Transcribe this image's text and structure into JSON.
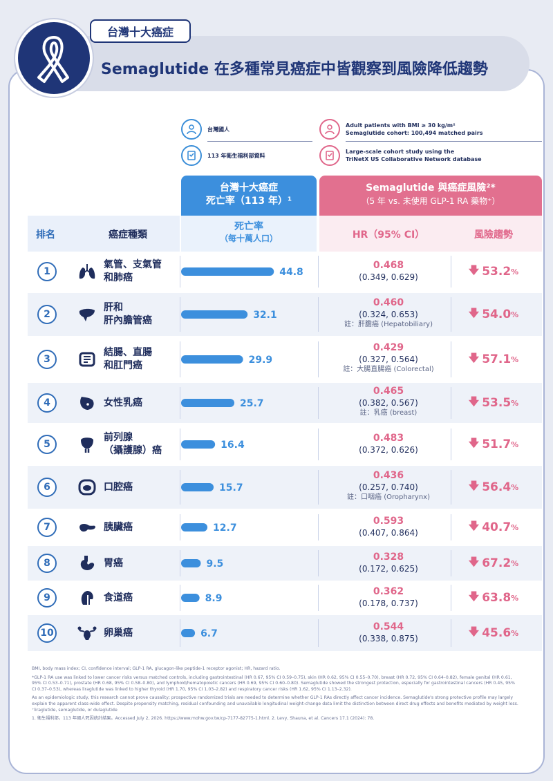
{
  "header": {
    "tag": "台灣十大癌症",
    "title": "Semaglutide 在多種常見癌症中皆觀察到風險降低趨勢"
  },
  "info": {
    "left1": "台灣國人",
    "left2": "113 年衛生福利部資料",
    "right1a": "Adult patients with BMI ≥ 30 kg/m²",
    "right1b": "Semaglutide cohort: 100,494 matched pairs",
    "right2a": "Large-scale cohort study using the",
    "right2b": "TriNetX US Collaborative Network database"
  },
  "headers": {
    "blue_line1": "台灣十大癌症",
    "blue_line2": "死亡率（113 年）¹",
    "pink_line1": "Semaglutide 與癌症風險²*",
    "pink_line2": "（5 年 vs. 未使用 GLP-1 RA 藥物⁺）",
    "col_rank": "排名",
    "col_type": "癌症種類",
    "col_rate1": "死亡率",
    "col_rate2": "（每十萬人口）",
    "col_hr": "HR（95% CI）",
    "col_trend": "風險趨勢"
  },
  "chart_data": {
    "type": "bar",
    "title": "台灣十大癌症死亡率（113 年）",
    "ylabel": "死亡率（每十萬人口）",
    "categories": [
      "氣管、支氣管和肺癌",
      "肝和肝內膽管癌",
      "結腸、直腸和肛門癌",
      "女性乳癌",
      "前列腺（攝護腺）癌",
      "口腔癌",
      "胰臟癌",
      "胃癌",
      "食道癌",
      "卵巢癌"
    ],
    "values": [
      44.8,
      32.1,
      29.9,
      25.7,
      16.4,
      15.7,
      12.7,
      9.5,
      8.9,
      6.7
    ],
    "value_labels": [
      "44.8",
      "32.1",
      "29.9",
      "25.7",
      "16.4",
      "15.7",
      "12.7",
      "9.5",
      "8.9",
      "6.7"
    ],
    "xlim": [
      0,
      50
    ],
    "bar_color": "#3c8fdd"
  },
  "rows": [
    {
      "rank": "1",
      "icon": "lungs-icon",
      "name1": "氣管、支氣管",
      "name2": "和肺癌",
      "hr": "0.468",
      "ci": "(0.349, 0.629)",
      "note": "",
      "trend": "53.2",
      "pct": "%"
    },
    {
      "rank": "2",
      "icon": "liver-icon",
      "name1": "肝和",
      "name2": "肝內膽管癌",
      "hr": "0.460",
      "ci": "(0.324, 0.653)",
      "note": "註：肝膽癌 (Hepatobiliary)",
      "trend": "54.0",
      "pct": "%"
    },
    {
      "rank": "3",
      "icon": "intestine-icon",
      "name1": "結腸、直腸",
      "name2": "和肛門癌",
      "hr": "0.429",
      "ci": "(0.327, 0.564)",
      "note": "註：大腸直腸癌 (Colorectal)",
      "trend": "57.1",
      "pct": "%"
    },
    {
      "rank": "4",
      "icon": "breast-icon",
      "name1": "女性乳癌",
      "name2": "",
      "hr": "0.465",
      "ci": "(0.382, 0.567)",
      "note": "註：乳癌 (breast)",
      "trend": "53.5",
      "pct": "%"
    },
    {
      "rank": "5",
      "icon": "prostate-icon",
      "name1": "前列腺",
      "name2": "（攝護腺）癌",
      "hr": "0.483",
      "ci": "(0.372, 0.626)",
      "note": "",
      "trend": "51.7",
      "pct": "%"
    },
    {
      "rank": "6",
      "icon": "mouth-icon",
      "name1": "口腔癌",
      "name2": "",
      "hr": "0.436",
      "ci": "(0.257, 0.740)",
      "note": "註：口咽癌 (Oropharynx)",
      "trend": "56.4",
      "pct": "%"
    },
    {
      "rank": "7",
      "icon": "pancreas-icon",
      "name1": "胰臟癌",
      "name2": "",
      "hr": "0.593",
      "ci": "(0.407, 0.864)",
      "note": "",
      "trend": "40.7",
      "pct": "%"
    },
    {
      "rank": "8",
      "icon": "stomach-icon",
      "name1": "胃癌",
      "name2": "",
      "hr": "0.328",
      "ci": "(0.172, 0.625)",
      "note": "",
      "trend": "67.2",
      "pct": "%"
    },
    {
      "rank": "9",
      "icon": "esophagus-icon",
      "name1": "食道癌",
      "name2": "",
      "hr": "0.362",
      "ci": "(0.178, 0.737)",
      "note": "",
      "trend": "63.8",
      "pct": "%"
    },
    {
      "rank": "10",
      "icon": "ovary-icon",
      "name1": "卵巢癌",
      "name2": "",
      "hr": "0.544",
      "ci": "(0.338, 0.875)",
      "note": "",
      "trend": "45.6",
      "pct": "%"
    }
  ],
  "footnotes": {
    "abbr": "BMI, body mass index; CI, confidence interval; GLP-1 RA, glucagon-like peptide-1 receptor agonist; HR, hazard ratio.",
    "star": "*GLP-1 RA use was linked to lower cancer risks versus matched controls, including gastrointestinal (HR 0.67, 95% CI 0.59–0.75), skin (HR 0.62, 95% CI 0.55–0.70), breast (HR 0.72, 95% CI 0.64–0.82), female genital (HR 0.61, 95% CI 0.53–0.71), prostate (HR 0.68, 95% CI 0.58–0.80), and lymphoid/hematopoietic cancers (HR 0.69, 95% CI 0.60–0.80). Semaglutide showed the strongest protection, especially for gastrointestinal cancers (HR 0.45, 95% CI 0.37–0.53), whereas liraglutide was linked to higher thyroid (HR 1.70, 95% CI 1.03–2.82) and respiratory cancer risks (HR 1.62, 95% CI 1.13–2.32).",
    "caution": "As an epidemiologic study, this research cannot prove causality; prospective randomized trials are needed to determine whether GLP-1 RAs directly affect cancer incidence. Semaglutide's strong protective profile may largely explain the apparent class-wide effect. Despite propensity matching, residual confounding and unavailable longitudinal weight-change data limit the distinction between direct drug effects and benefits mediated by weight loss.",
    "dagger": "⁺liraglutide, semaglutide, or dulaglutide",
    "refs": "1. 衛生福利部，113 年國人死因統計結果。Accessed July 2, 2026. https://www.mohw.gov.tw/cp-7177-82775-1.html. 2. Levy, Shauna, et al. Cancers 17.1 (2024): 78."
  }
}
